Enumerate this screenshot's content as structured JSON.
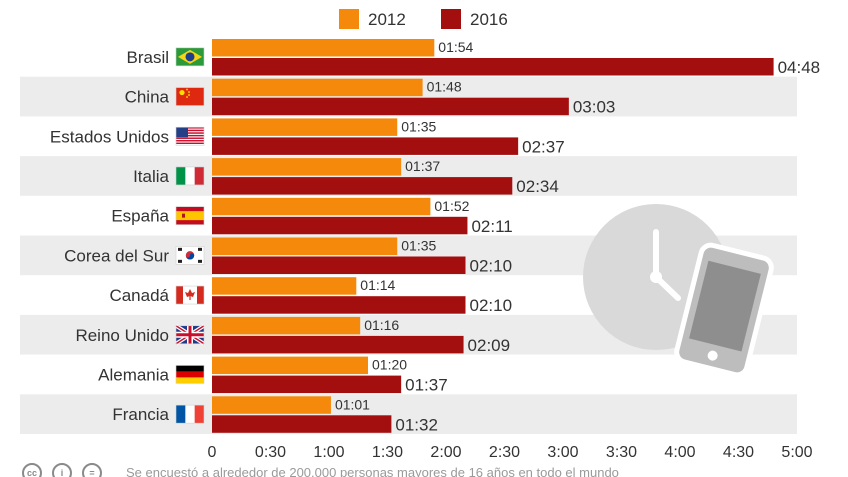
{
  "chart_data": {
    "type": "bar",
    "orientation": "horizontal",
    "categories": [
      "Brasil",
      "China",
      "Estados Unidos",
      "Italia",
      "España",
      "Corea del Sur",
      "Canadá",
      "Reino Unido",
      "Alemania",
      "Francia"
    ],
    "flags": [
      "flag-brazil",
      "flag-china",
      "flag-usa",
      "flag-italy",
      "flag-spain",
      "flag-south-korea",
      "flag-canada",
      "flag-uk",
      "flag-germany",
      "flag-france"
    ],
    "series": [
      {
        "name": "2012",
        "color": "#f5890c",
        "values": [
          114,
          108,
          95,
          97,
          112,
          95,
          74,
          76,
          80,
          61
        ],
        "labels": [
          "01:54",
          "01:48",
          "01:35",
          "01:37",
          "01:52",
          "01:35",
          "01:14",
          "01:16",
          "01:20",
          "01:01"
        ]
      },
      {
        "name": "2016",
        "color": "#a30f0f",
        "values": [
          288,
          183,
          157,
          154,
          131,
          130,
          130,
          129,
          97,
          92
        ],
        "labels": [
          "04:48",
          "03:03",
          "02:37",
          "02:34",
          "02:11",
          "02:10",
          "02:10",
          "02:09",
          "01:37",
          "01:32"
        ]
      }
    ],
    "xlim": [
      0,
      300
    ],
    "xticks": [
      0,
      30,
      60,
      90,
      120,
      150,
      180,
      210,
      240,
      270,
      300
    ],
    "xtick_labels": [
      "0",
      "0:30",
      "1:00",
      "1:30",
      "2:00",
      "2:30",
      "3:00",
      "3:30",
      "4:00",
      "4:30",
      "5:00"
    ],
    "legend": "top-center",
    "row_banding": true,
    "decoration": [
      "clock-icon",
      "smartphone-icon"
    ]
  },
  "footer": {
    "license_icons": [
      "cc-icon",
      "by-icon",
      "nd-icon"
    ],
    "license_glyphs": [
      "cc",
      "i",
      "="
    ],
    "note": "Se encuestó a alrededor de 200.000 personas mayores de 16 años en todo el mundo"
  }
}
